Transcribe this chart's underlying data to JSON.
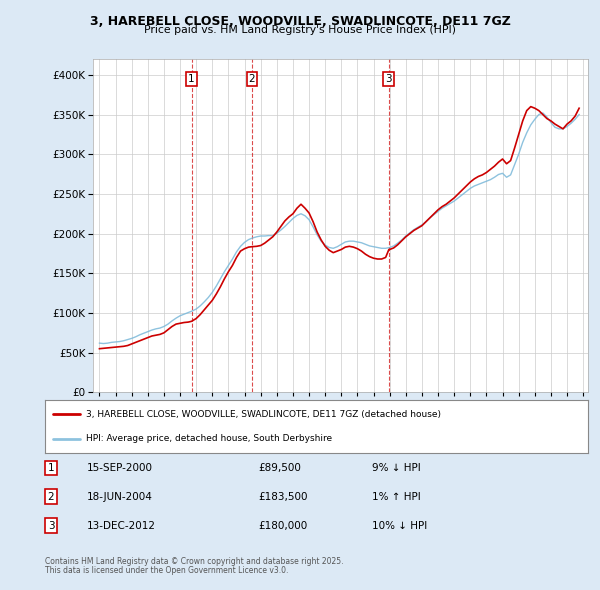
{
  "title_line1": "3, HAREBELL CLOSE, WOODVILLE, SWADLINCOTE, DE11 7GZ",
  "title_line2": "Price paid vs. HM Land Registry's House Price Index (HPI)",
  "legend_label_red": "3, HAREBELL CLOSE, WOODVILLE, SWADLINCOTE, DE11 7GZ (detached house)",
  "legend_label_blue": "HPI: Average price, detached house, South Derbyshire",
  "footer_line1": "Contains HM Land Registry data © Crown copyright and database right 2025.",
  "footer_line2": "This data is licensed under the Open Government Licence v3.0.",
  "sale_markers": [
    {
      "label": "1",
      "date_str": "15-SEP-2000",
      "price": "£89,500",
      "hpi_pct": "9% ↓ HPI",
      "x": 2000.71
    },
    {
      "label": "2",
      "date_str": "18-JUN-2004",
      "price": "£183,500",
      "hpi_pct": "1% ↑ HPI",
      "x": 2004.46
    },
    {
      "label": "3",
      "date_str": "13-DEC-2012",
      "price": "£180,000",
      "hpi_pct": "10% ↓ HPI",
      "x": 2012.95
    }
  ],
  "hpi_color": "#7ab8d9",
  "price_color": "#cc0000",
  "background_color": "#dce9f5",
  "plot_bg_color": "#ffffff",
  "grid_color": "#cccccc",
  "marker_box_color": "#cc0000",
  "dashed_line_color": "#cc0000",
  "ylim": [
    0,
    420000
  ],
  "yticks": [
    0,
    50000,
    100000,
    150000,
    200000,
    250000,
    300000,
    350000,
    400000
  ],
  "hpi_data": {
    "years": [
      1995.0,
      1995.25,
      1995.5,
      1995.75,
      1996.0,
      1996.25,
      1996.5,
      1996.75,
      1997.0,
      1997.25,
      1997.5,
      1997.75,
      1998.0,
      1998.25,
      1998.5,
      1998.75,
      1999.0,
      1999.25,
      1999.5,
      1999.75,
      2000.0,
      2000.25,
      2000.5,
      2000.75,
      2001.0,
      2001.25,
      2001.5,
      2001.75,
      2002.0,
      2002.25,
      2002.5,
      2002.75,
      2003.0,
      2003.25,
      2003.5,
      2003.75,
      2004.0,
      2004.25,
      2004.5,
      2004.75,
      2005.0,
      2005.25,
      2005.5,
      2005.75,
      2006.0,
      2006.25,
      2006.5,
      2006.75,
      2007.0,
      2007.25,
      2007.5,
      2007.75,
      2008.0,
      2008.25,
      2008.5,
      2008.75,
      2009.0,
      2009.25,
      2009.5,
      2009.75,
      2010.0,
      2010.25,
      2010.5,
      2010.75,
      2011.0,
      2011.25,
      2011.5,
      2011.75,
      2012.0,
      2012.25,
      2012.5,
      2012.75,
      2013.0,
      2013.25,
      2013.5,
      2013.75,
      2014.0,
      2014.25,
      2014.5,
      2014.75,
      2015.0,
      2015.25,
      2015.5,
      2015.75,
      2016.0,
      2016.25,
      2016.5,
      2016.75,
      2017.0,
      2017.25,
      2017.5,
      2017.75,
      2018.0,
      2018.25,
      2018.5,
      2018.75,
      2019.0,
      2019.25,
      2019.5,
      2019.75,
      2020.0,
      2020.25,
      2020.5,
      2020.75,
      2021.0,
      2021.25,
      2021.5,
      2021.75,
      2022.0,
      2022.25,
      2022.5,
      2022.75,
      2023.0,
      2023.25,
      2023.5,
      2023.75,
      2024.0,
      2024.25,
      2024.5,
      2024.75
    ],
    "values": [
      62000,
      61500,
      62000,
      63000,
      63500,
      64000,
      65000,
      66500,
      68000,
      70000,
      72500,
      74500,
      76500,
      78500,
      80000,
      81000,
      83000,
      86000,
      90000,
      93500,
      96500,
      98500,
      100500,
      102500,
      105000,
      109000,
      114000,
      119500,
      126000,
      134000,
      143000,
      152000,
      160000,
      168000,
      177000,
      184000,
      189000,
      192500,
      194500,
      196000,
      197000,
      197000,
      197500,
      197500,
      200500,
      204500,
      209000,
      214000,
      219000,
      223000,
      225000,
      222500,
      217500,
      208500,
      198500,
      190500,
      185500,
      182500,
      181500,
      183500,
      186500,
      189500,
      190500,
      190500,
      189500,
      188500,
      186500,
      184500,
      183500,
      182500,
      181500,
      181500,
      182500,
      184500,
      188000,
      192000,
      197000,
      201000,
      205000,
      208000,
      211000,
      215000,
      220000,
      224000,
      228000,
      232000,
      235000,
      238000,
      241000,
      245000,
      249000,
      253000,
      257000,
      260000,
      262000,
      264000,
      266000,
      268000,
      271000,
      274500,
      276000,
      271000,
      274000,
      287000,
      300000,
      315000,
      327000,
      337000,
      344000,
      350000,
      352000,
      347000,
      340000,
      334000,
      332000,
      332000,
      335000,
      339000,
      344000,
      350000
    ]
  },
  "price_line_data": {
    "x": [
      1995.0,
      1995.25,
      1995.5,
      1995.75,
      1996.0,
      1996.25,
      1996.5,
      1996.75,
      1997.0,
      1997.25,
      1997.5,
      1997.75,
      1998.0,
      1998.25,
      1998.5,
      1998.75,
      1999.0,
      1999.25,
      1999.5,
      1999.75,
      2000.0,
      2000.25,
      2000.5,
      2000.71,
      2001.0,
      2001.25,
      2001.5,
      2001.75,
      2002.0,
      2002.25,
      2002.5,
      2002.75,
      2003.0,
      2003.25,
      2003.5,
      2003.75,
      2004.0,
      2004.25,
      2004.46,
      2004.75,
      2005.0,
      2005.25,
      2005.5,
      2005.75,
      2006.0,
      2006.25,
      2006.5,
      2006.75,
      2007.0,
      2007.25,
      2007.5,
      2007.75,
      2008.0,
      2008.25,
      2008.5,
      2008.75,
      2009.0,
      2009.25,
      2009.5,
      2009.75,
      2010.0,
      2010.25,
      2010.5,
      2010.75,
      2011.0,
      2011.25,
      2011.5,
      2011.75,
      2012.0,
      2012.25,
      2012.5,
      2012.75,
      2012.95,
      2013.0,
      2013.25,
      2013.5,
      2013.75,
      2014.0,
      2014.25,
      2014.5,
      2014.75,
      2015.0,
      2015.25,
      2015.5,
      2015.75,
      2016.0,
      2016.25,
      2016.5,
      2016.75,
      2017.0,
      2017.25,
      2017.5,
      2017.75,
      2018.0,
      2018.25,
      2018.5,
      2018.75,
      2019.0,
      2019.25,
      2019.5,
      2019.75,
      2020.0,
      2020.25,
      2020.5,
      2020.75,
      2021.0,
      2021.25,
      2021.5,
      2021.75,
      2022.0,
      2022.25,
      2022.5,
      2022.75,
      2023.0,
      2023.25,
      2023.5,
      2023.75,
      2024.0,
      2024.25,
      2024.5,
      2024.75
    ],
    "values": [
      55000,
      55500,
      56000,
      56500,
      57000,
      57500,
      58000,
      59000,
      61000,
      63000,
      65000,
      67000,
      69000,
      71000,
      72000,
      73000,
      75000,
      79000,
      83000,
      86000,
      87000,
      88000,
      88500,
      89500,
      93000,
      98000,
      104000,
      110000,
      116000,
      124000,
      133000,
      143000,
      152000,
      160000,
      170000,
      178000,
      181000,
      183000,
      183500,
      184000,
      185000,
      188000,
      192000,
      196000,
      202000,
      209000,
      216000,
      221000,
      225000,
      232000,
      237000,
      232000,
      226000,
      215000,
      202000,
      192000,
      184000,
      179000,
      176000,
      178000,
      180000,
      183000,
      184000,
      183000,
      181000,
      178000,
      174000,
      171000,
      169000,
      168000,
      168000,
      170000,
      180000,
      180000,
      182000,
      186000,
      191000,
      196000,
      200000,
      204000,
      207000,
      210000,
      215000,
      220000,
      225000,
      230000,
      234000,
      237000,
      241000,
      245000,
      250000,
      255000,
      260000,
      265000,
      269000,
      272000,
      274000,
      277000,
      281000,
      285000,
      290000,
      294000,
      288000,
      292000,
      308000,
      325000,
      342000,
      355000,
      360000,
      358000,
      355000,
      350000,
      345000,
      342000,
      338000,
      335000,
      332000,
      338000,
      342000,
      348000,
      358000
    ]
  }
}
